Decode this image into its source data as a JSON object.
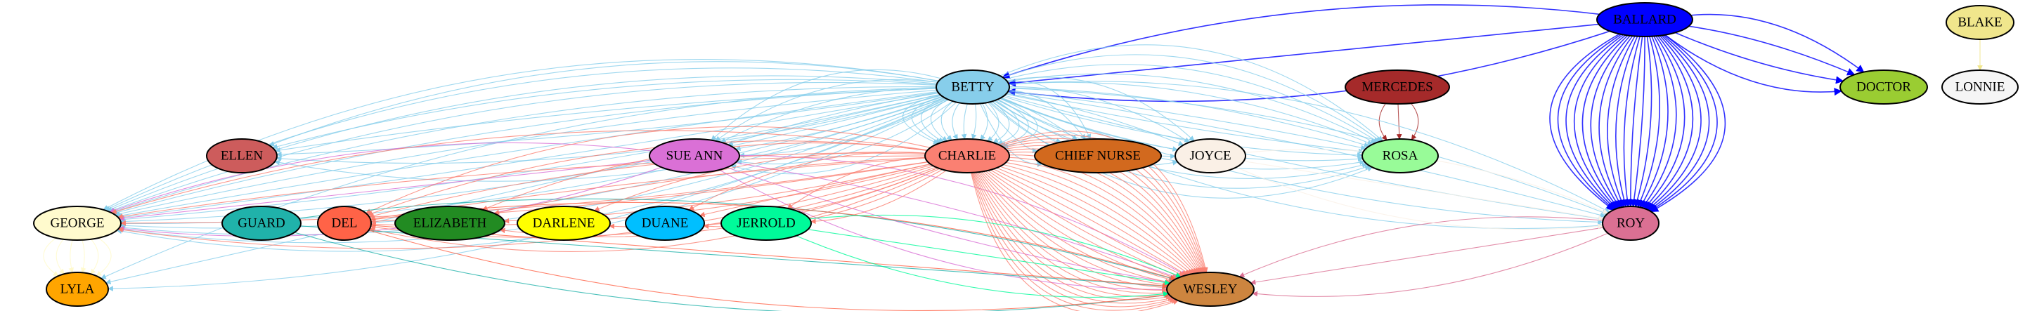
{
  "graph": {
    "nodes": [
      {
        "id": "BALLARD",
        "label": "BALLARD",
        "color": "#0000ff"
      },
      {
        "id": "BLAKE",
        "label": "BLAKE",
        "color": "#f0e68c"
      },
      {
        "id": "LONNIE",
        "label": "LONNIE",
        "color": "#f5f5f5"
      },
      {
        "id": "DOCTOR",
        "label": "DOCTOR",
        "color": "#9acd32"
      },
      {
        "id": "BETTY",
        "label": "BETTY",
        "color": "#87ceeb"
      },
      {
        "id": "MERCEDES",
        "label": "MERCEDES",
        "color": "#a52a2a"
      },
      {
        "id": "ELLEN",
        "label": "ELLEN",
        "color": "#cd5c5c"
      },
      {
        "id": "SUE_ANN",
        "label": "SUE ANN",
        "color": "#da70d6"
      },
      {
        "id": "CHARLIE",
        "label": "CHARLIE",
        "color": "#fa8072"
      },
      {
        "id": "CHIEF_NURSE",
        "label": "CHIEF NURSE",
        "color": "#d2691e"
      },
      {
        "id": "JOYCE",
        "label": "JOYCE",
        "color": "#faf0e6"
      },
      {
        "id": "ROSA",
        "label": "ROSA",
        "color": "#98fb98"
      },
      {
        "id": "GEORGE",
        "label": "GEORGE",
        "color": "#fffacd"
      },
      {
        "id": "GUARD",
        "label": "GUARD",
        "color": "#20b2aa"
      },
      {
        "id": "DEL",
        "label": "DEL",
        "color": "#ff6347"
      },
      {
        "id": "ELIZABETH",
        "label": "ELIZABETH",
        "color": "#228b22"
      },
      {
        "id": "DARLENE",
        "label": "DARLENE",
        "color": "#ffff00"
      },
      {
        "id": "DUANE",
        "label": "DUANE",
        "color": "#00bfff"
      },
      {
        "id": "JERROLD",
        "label": "JERROLD",
        "color": "#00fa9a"
      },
      {
        "id": "ROY",
        "label": "ROY",
        "color": "#db7093"
      },
      {
        "id": "LYLA",
        "label": "LYLA",
        "color": "#ffa500"
      },
      {
        "id": "WESLEY",
        "label": "WESLEY",
        "color": "#cd853f"
      }
    ],
    "edges": [
      {
        "from": "BALLARD",
        "to": "BETTY",
        "count": 3
      },
      {
        "from": "BALLARD",
        "to": "DOCTOR",
        "count": 4
      },
      {
        "from": "BALLARD",
        "to": "ROY",
        "count": 22
      },
      {
        "from": "BLAKE",
        "to": "LONNIE",
        "count": 1
      },
      {
        "from": "MERCEDES",
        "to": "ROSA",
        "count": 3
      },
      {
        "from": "BETTY",
        "to": "ELLEN",
        "count": 6
      },
      {
        "from": "BETTY",
        "to": "SUE_ANN",
        "count": 8
      },
      {
        "from": "BETTY",
        "to": "CHARLIE",
        "count": 14
      },
      {
        "from": "BETTY",
        "to": "CHIEF_NURSE",
        "count": 6
      },
      {
        "from": "BETTY",
        "to": "JOYCE",
        "count": 6
      },
      {
        "from": "BETTY",
        "to": "ROSA",
        "count": 14
      },
      {
        "from": "BETTY",
        "to": "GEORGE",
        "count": 16
      },
      {
        "from": "BETTY",
        "to": "LYLA",
        "count": 3
      },
      {
        "from": "BETTY",
        "to": "ROY",
        "count": 6
      },
      {
        "from": "SUE_ANN",
        "to": "GEORGE",
        "count": 3
      },
      {
        "from": "SUE_ANN",
        "to": "WESLEY",
        "count": 4
      },
      {
        "from": "CHARLIE",
        "to": "GEORGE",
        "count": 4
      },
      {
        "from": "CHARLIE",
        "to": "DEL",
        "count": 8
      },
      {
        "from": "CHARLIE",
        "to": "ELIZABETH",
        "count": 4
      },
      {
        "from": "CHARLIE",
        "to": "DARLENE",
        "count": 2
      },
      {
        "from": "CHARLIE",
        "to": "DUANE",
        "count": 3
      },
      {
        "from": "CHARLIE",
        "to": "JERROLD",
        "count": 2
      },
      {
        "from": "CHARLIE",
        "to": "WESLEY",
        "count": 30
      },
      {
        "from": "GEORGE",
        "to": "LYLA",
        "count": 6
      },
      {
        "from": "GUARD",
        "to": "WESLEY",
        "count": 3
      },
      {
        "from": "DEL",
        "to": "WESLEY",
        "count": 3
      },
      {
        "from": "JERROLD",
        "to": "WESLEY",
        "count": 3
      },
      {
        "from": "ROY",
        "to": "WESLEY",
        "count": 3
      },
      {
        "from": "JOYCE",
        "to": "ROY",
        "count": 3
      }
    ]
  }
}
